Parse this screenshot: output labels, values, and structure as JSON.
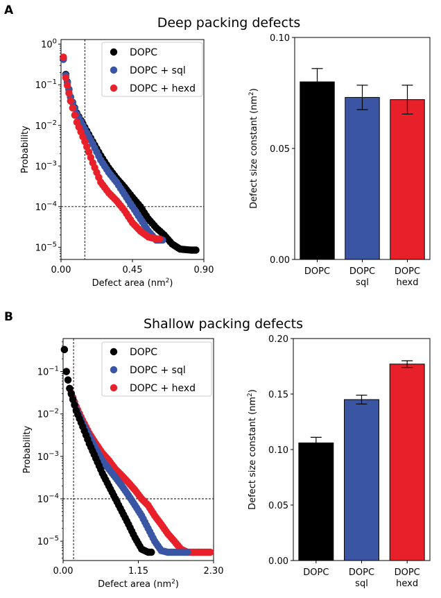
{
  "panels": [
    {
      "letter": "A",
      "title": "Deep packing defects",
      "colors": {
        "DOPC": "#000000",
        "DOPC + sql": "#3a55a4",
        "DOPC + hexd": "#e8202a"
      }
    },
    {
      "letter": "B",
      "title": "Shallow packing defects",
      "colors": {
        "DOPC": "#000000",
        "DOPC + sql": "#3a55a4",
        "DOPC + hexd": "#e8202a"
      }
    }
  ],
  "chart_data": [
    {
      "type": "scatter",
      "panel": "A",
      "xlabel": "Defect area (nm²)",
      "ylabel": "Probability",
      "yscale": "log",
      "xlim": [
        0,
        0.9
      ],
      "xticks": [
        "0.00",
        "0.45",
        "0.90"
      ],
      "ylim": [
        5e-06,
        1.3
      ],
      "yticks": [
        "10⁰",
        "10⁻¹",
        "10⁻²",
        "10⁻³",
        "10⁻⁴",
        "10⁻⁵"
      ],
      "legend": "top-right",
      "reference_lines": {
        "vertical_x": 0.15,
        "horizontal_y": 0.0001
      },
      "series": [
        {
          "name": "DOPC",
          "decay_nm2": 0.08,
          "x_max": 0.85,
          "points": [
            [
              0.015,
              0.45
            ],
            [
              0.03,
              0.18
            ],
            [
              0.06,
              0.05
            ],
            [
              0.1,
              0.02
            ],
            [
              0.15,
              0.009
            ],
            [
              0.2,
              0.004
            ],
            [
              0.25,
              0.0018
            ],
            [
              0.3,
              0.0009
            ],
            [
              0.35,
              0.0005
            ],
            [
              0.4,
              0.0003
            ],
            [
              0.45,
              0.00017
            ],
            [
              0.5,
              0.0001
            ],
            [
              0.55,
              5e-05
            ],
            [
              0.6,
              3e-05
            ],
            [
              0.65,
              2e-05
            ],
            [
              0.7,
              1.2e-05
            ],
            [
              0.75,
              9e-06
            ],
            [
              0.82,
              8.5e-06
            ],
            [
              0.85,
              8.5e-06
            ]
          ]
        },
        {
          "name": "DOPC + sql",
          "decay_nm2": 0.073,
          "x_max": 0.64,
          "points": [
            [
              0.015,
              0.42
            ],
            [
              0.03,
              0.17
            ],
            [
              0.06,
              0.05
            ],
            [
              0.1,
              0.019
            ],
            [
              0.15,
              0.008
            ],
            [
              0.2,
              0.0035
            ],
            [
              0.25,
              0.0014
            ],
            [
              0.3,
              0.0007
            ],
            [
              0.35,
              0.0004
            ],
            [
              0.4,
              0.0002
            ],
            [
              0.45,
              0.0001
            ],
            [
              0.5,
              5e-05
            ],
            [
              0.55,
              2.5e-05
            ],
            [
              0.6,
              1.5e-05
            ],
            [
              0.64,
              1.5e-05
            ]
          ]
        },
        {
          "name": "DOPC + hexd",
          "decay_nm2": 0.072,
          "x_max": 0.62,
          "points": [
            [
              0.015,
              0.48
            ],
            [
              0.03,
              0.15
            ],
            [
              0.06,
              0.04
            ],
            [
              0.1,
              0.012
            ],
            [
              0.15,
              0.004
            ],
            [
              0.2,
              0.0012
            ],
            [
              0.25,
              0.0004
            ],
            [
              0.3,
              0.00022
            ],
            [
              0.35,
              0.00014
            ],
            [
              0.4,
              8e-05
            ],
            [
              0.45,
              4e-05
            ],
            [
              0.5,
              2.5e-05
            ],
            [
              0.55,
              1.8e-05
            ],
            [
              0.6,
              1.6e-05
            ],
            [
              0.62,
              1.6e-05
            ]
          ]
        }
      ]
    },
    {
      "type": "bar",
      "panel": "A",
      "categories": [
        "DOPC",
        "DOPC\nsql",
        "DOPC\nhexd"
      ],
      "values": [
        0.08,
        0.073,
        0.072
      ],
      "errors": [
        0.006,
        0.0055,
        0.0065
      ],
      "ylabel": "Defect size constant (nm²)",
      "ylim": [
        0,
        0.1
      ],
      "yticks": [
        "0.00",
        "0.05",
        "0.10"
      ],
      "bar_colors": [
        "#000000",
        "#3a55a4",
        "#e8202a"
      ]
    },
    {
      "type": "scatter",
      "panel": "B",
      "xlabel": "Defect area (nm²)",
      "ylabel": "Probability",
      "yscale": "log",
      "xlim": [
        0,
        2.3
      ],
      "xticks": [
        "0.00",
        "1.15",
        "2.30"
      ],
      "ylim": [
        3.5e-06,
        0.6
      ],
      "yticks": [
        "10⁻¹",
        "10⁻²",
        "10⁻³",
        "10⁻⁴",
        "10⁻⁵"
      ],
      "legend": "top-right",
      "reference_lines": {
        "vertical_x": 0.16,
        "horizontal_y": 0.0001
      },
      "series": [
        {
          "name": "DOPC",
          "decay_nm2": 0.106,
          "x_max": 1.35,
          "points": [
            [
              0.02,
              0.33
            ],
            [
              0.05,
              0.1
            ],
            [
              0.1,
              0.04
            ],
            [
              0.2,
              0.012
            ],
            [
              0.3,
              0.005
            ],
            [
              0.4,
              0.002
            ],
            [
              0.5,
              0.0009
            ],
            [
              0.6,
              0.0004
            ],
            [
              0.7,
              0.0002
            ],
            [
              0.8,
              0.0001
            ],
            [
              0.9,
              5e-05
            ],
            [
              1.0,
              2.5e-05
            ],
            [
              1.1,
              1.2e-05
            ],
            [
              1.2,
              6.5e-06
            ],
            [
              1.3,
              5.5e-06
            ],
            [
              1.35,
              5.5e-06
            ]
          ]
        },
        {
          "name": "DOPC + sql",
          "decay_nm2": 0.145,
          "x_max": 1.9,
          "points": [
            [
              0.02,
              0.33
            ],
            [
              0.05,
              0.1
            ],
            [
              0.1,
              0.04
            ],
            [
              0.2,
              0.013
            ],
            [
              0.3,
              0.006
            ],
            [
              0.4,
              0.003
            ],
            [
              0.5,
              0.0015
            ],
            [
              0.6,
              0.0008
            ],
            [
              0.7,
              0.0005
            ],
            [
              0.8,
              0.00032
            ],
            [
              0.9,
              0.0002
            ],
            [
              1.0,
              0.00012
            ],
            [
              1.1,
              7e-05
            ],
            [
              1.2,
              4e-05
            ],
            [
              1.3,
              2e-05
            ],
            [
              1.4,
              1e-05
            ],
            [
              1.5,
              6e-06
            ],
            [
              1.6,
              5.5e-06
            ],
            [
              1.9,
              5.5e-06
            ]
          ]
        },
        {
          "name": "DOPC + hexd",
          "decay_nm2": 0.177,
          "x_max": 2.25,
          "points": [
            [
              0.02,
              0.33
            ],
            [
              0.05,
              0.1
            ],
            [
              0.1,
              0.04
            ],
            [
              0.2,
              0.015
            ],
            [
              0.3,
              0.007
            ],
            [
              0.4,
              0.0035
            ],
            [
              0.5,
              0.002
            ],
            [
              0.6,
              0.0012
            ],
            [
              0.7,
              0.0008
            ],
            [
              0.8,
              0.0005
            ],
            [
              0.9,
              0.00035
            ],
            [
              1.0,
              0.00024
            ],
            [
              1.1,
              0.00016
            ],
            [
              1.2,
              0.0001
            ],
            [
              1.3,
              7e-05
            ],
            [
              1.4,
              4e-05
            ],
            [
              1.5,
              2.5e-05
            ],
            [
              1.6,
              1.5e-05
            ],
            [
              1.7,
              1e-05
            ],
            [
              1.8,
              6.5e-06
            ],
            [
              1.9,
              5.5e-06
            ],
            [
              2.0,
              5.5e-06
            ],
            [
              2.25,
              5.5e-06
            ]
          ]
        }
      ]
    },
    {
      "type": "bar",
      "panel": "B",
      "categories": [
        "DOPC",
        "DOPC\nsql",
        "DOPC\nhexd"
      ],
      "values": [
        0.106,
        0.145,
        0.177
      ],
      "errors": [
        0.005,
        0.004,
        0.003
      ],
      "ylabel": "Defect size constant (nm²)",
      "ylim": [
        0,
        0.2
      ],
      "yticks": [
        "0.00",
        "0.05",
        "0.10",
        "0.15",
        "0.20"
      ],
      "bar_colors": [
        "#000000",
        "#3a55a4",
        "#e8202a"
      ]
    }
  ]
}
